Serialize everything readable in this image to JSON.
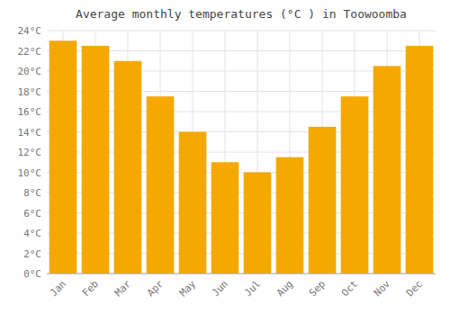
{
  "chart_data": {
    "type": "bar",
    "title": "Average monthly temperatures (°C ) in Toowoomba",
    "categories": [
      "Jan",
      "Feb",
      "Mar",
      "Apr",
      "May",
      "Jun",
      "Jul",
      "Aug",
      "Sep",
      "Oct",
      "Nov",
      "Dec"
    ],
    "values": [
      23.0,
      22.5,
      21.0,
      17.5,
      14.0,
      11.0,
      10.0,
      11.5,
      14.5,
      17.5,
      20.5,
      22.5
    ],
    "color": "#F5A800",
    "ylim": [
      0,
      24
    ],
    "yticks": [
      {
        "value": 0,
        "label": "0°C"
      },
      {
        "value": 2,
        "label": "2°C"
      },
      {
        "value": 4,
        "label": "4°C"
      },
      {
        "value": 6,
        "label": "6°C"
      },
      {
        "value": 8,
        "label": "8°C"
      },
      {
        "value": 10,
        "label": "10°C"
      },
      {
        "value": 12,
        "label": "12°C"
      },
      {
        "value": 14,
        "label": "14°C"
      },
      {
        "value": 16,
        "label": "16°C"
      },
      {
        "value": 18,
        "label": "18°C"
      },
      {
        "value": 20,
        "label": "20°C"
      },
      {
        "value": 22,
        "label": "22°C"
      },
      {
        "value": 24,
        "label": "24°C"
      }
    ],
    "grid": true
  }
}
